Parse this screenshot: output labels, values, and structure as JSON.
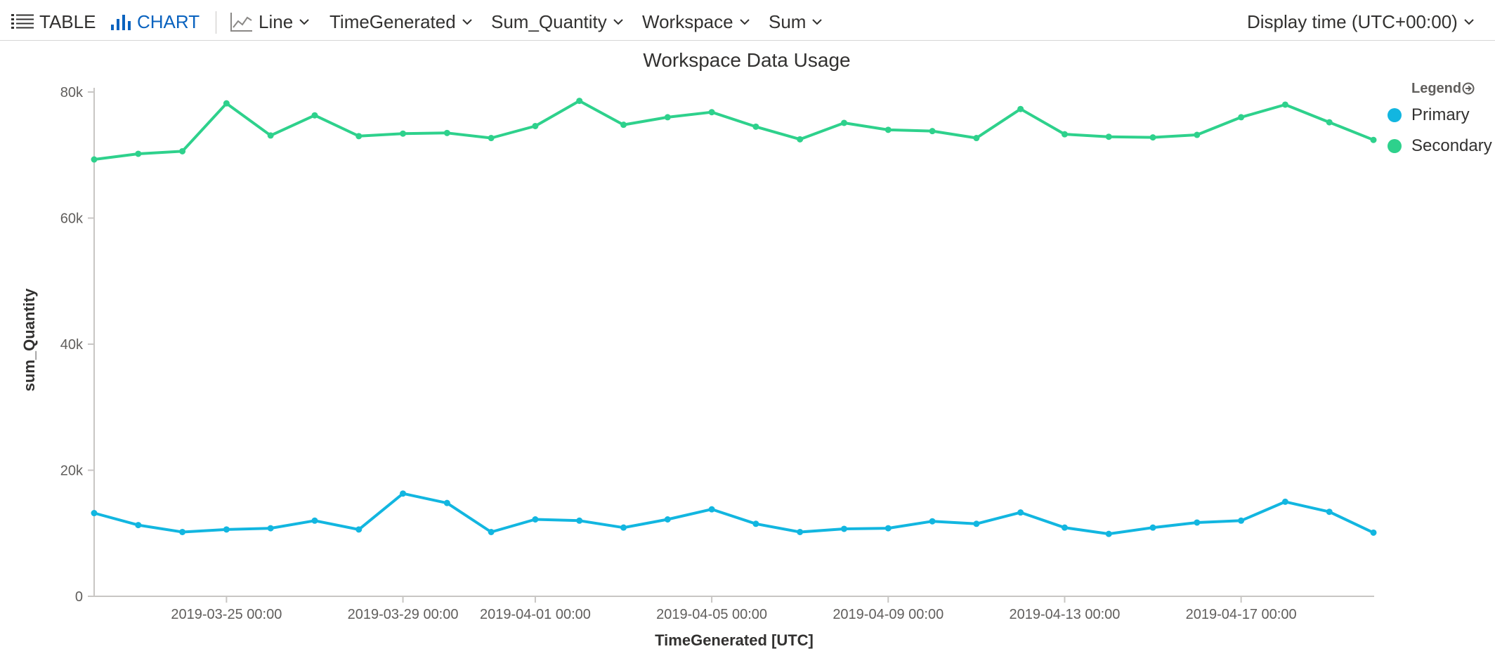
{
  "toolbar": {
    "table_label": "TABLE",
    "chart_label": "CHART",
    "chart_type_label": "Line",
    "x_column_label": "TimeGenerated",
    "y_column_label": "Sum_Quantity",
    "split_by_label": "Workspace",
    "aggregation_label": "Sum",
    "display_time_label": "Display time (UTC+00:00)"
  },
  "colors": {
    "primary": "#12b6e0",
    "secondary": "#2ed18c",
    "accent": "#0a63bf"
  },
  "legend": {
    "title": "Legend",
    "items": [
      "Primary",
      "Secondary"
    ]
  },
  "chart_data": {
    "type": "line",
    "title": "Workspace Data Usage",
    "xlabel": "TimeGenerated [UTC]",
    "ylabel": "sum_Quantity",
    "ylim": [
      0,
      80000
    ],
    "yticks": [
      0,
      20000,
      40000,
      60000,
      80000
    ],
    "ytick_labels": [
      "0",
      "20k",
      "40k",
      "60k",
      "80k"
    ],
    "x": [
      "2019-03-22",
      "2019-03-23",
      "2019-03-24",
      "2019-03-25",
      "2019-03-26",
      "2019-03-27",
      "2019-03-28",
      "2019-03-29",
      "2019-03-30",
      "2019-03-31",
      "2019-04-01",
      "2019-04-02",
      "2019-04-03",
      "2019-04-04",
      "2019-04-05",
      "2019-04-06",
      "2019-04-07",
      "2019-04-08",
      "2019-04-09",
      "2019-04-10",
      "2019-04-11",
      "2019-04-12",
      "2019-04-13",
      "2019-04-14",
      "2019-04-15",
      "2019-04-16",
      "2019-04-17",
      "2019-04-18",
      "2019-04-19",
      "2019-04-20"
    ],
    "xticks": [
      "2019-03-25",
      "2019-03-29",
      "2019-04-01",
      "2019-04-05",
      "2019-04-09",
      "2019-04-13",
      "2019-04-17"
    ],
    "xtick_labels": [
      "2019-03-25 00:00",
      "2019-03-29 00:00",
      "2019-04-01 00:00",
      "2019-04-05 00:00",
      "2019-04-09 00:00",
      "2019-04-13 00:00",
      "2019-04-17 00:00"
    ],
    "grid": false,
    "legend_position": "top-right",
    "series": [
      {
        "name": "Primary",
        "color": "#12b6e0",
        "values": [
          13200,
          11300,
          10200,
          10600,
          10800,
          12000,
          10600,
          16300,
          14800,
          10200,
          12200,
          12000,
          10900,
          12200,
          13800,
          11500,
          10200,
          10700,
          10800,
          11900,
          11500,
          13300,
          10900,
          9900,
          10900,
          11700,
          12000,
          15000,
          13400,
          10100
        ]
      },
      {
        "name": "Secondary",
        "color": "#2ed18c",
        "values": [
          69300,
          70200,
          70600,
          78200,
          73100,
          76300,
          73000,
          73400,
          73500,
          72700,
          74600,
          78600,
          74800,
          76000,
          76800,
          74500,
          72500,
          75100,
          74000,
          73800,
          72700,
          77300,
          73300,
          72900,
          72800,
          73200,
          76000,
          78000,
          75200,
          72400
        ]
      }
    ]
  }
}
